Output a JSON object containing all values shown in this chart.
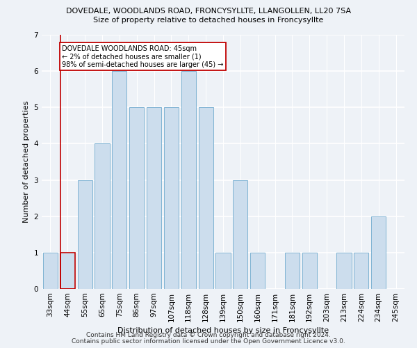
{
  "title": "DOVEDALE, WOODLANDS ROAD, FRONCYSYLLTE, LLANGOLLEN, LL20 7SA",
  "subtitle": "Size of property relative to detached houses in Froncysyllte",
  "xlabel": "Distribution of detached houses by size in Froncysyllte",
  "ylabel": "Number of detached properties",
  "footnote1": "Contains HM Land Registry data © Crown copyright and database right 2024.",
  "footnote2": "Contains public sector information licensed under the Open Government Licence v3.0.",
  "categories": [
    "33sqm",
    "44sqm",
    "55sqm",
    "65sqm",
    "75sqm",
    "86sqm",
    "97sqm",
    "107sqm",
    "118sqm",
    "128sqm",
    "139sqm",
    "150sqm",
    "160sqm",
    "171sqm",
    "181sqm",
    "192sqm",
    "203sqm",
    "213sqm",
    "224sqm",
    "234sqm",
    "245sqm"
  ],
  "values": [
    1,
    1,
    3,
    4,
    6,
    5,
    5,
    5,
    6,
    5,
    1,
    3,
    1,
    0,
    1,
    1,
    0,
    1,
    1,
    2,
    0
  ],
  "bar_color": "#ccdded",
  "bar_edgecolor": "#7fb3d3",
  "highlight_index": 1,
  "highlight_edgecolor": "#c00000",
  "annotation_text": "DOVEDALE WOODLANDS ROAD: 45sqm\n← 2% of detached houses are smaller (1)\n98% of semi-detached houses are larger (45) →",
  "annotation_box_facecolor": "white",
  "annotation_box_edgecolor": "#c00000",
  "vline_color": "#c00000",
  "ylim": [
    0,
    7
  ],
  "background_color": "#eef2f7"
}
